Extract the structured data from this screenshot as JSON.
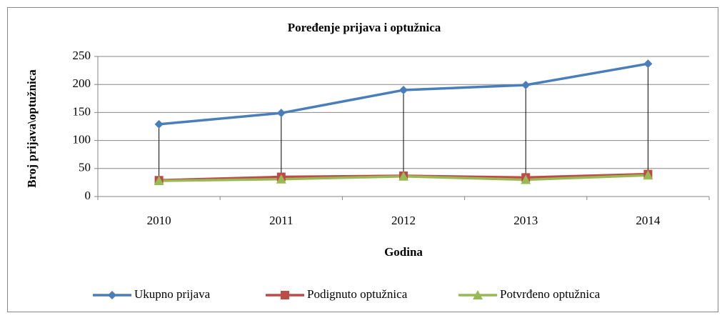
{
  "chart_data": {
    "type": "line",
    "title": "Poređenje prijava i optužnica",
    "x_label": "Godina",
    "y_label": "Broj prijava\\optužnica",
    "categories": [
      "2010",
      "2011",
      "2012",
      "2013",
      "2014"
    ],
    "series": [
      {
        "name": "Ukupno prijava",
        "color": "#4a7ebb",
        "marker": "diamond",
        "values": [
          129,
          149,
          190,
          199,
          237
        ]
      },
      {
        "name": "Podignuto optužnica",
        "color": "#be4b48",
        "marker": "square",
        "values": [
          29,
          35,
          37,
          34,
          40
        ]
      },
      {
        "name": "Potvrđeno optužnica",
        "color": "#98b954",
        "marker": "triangle",
        "values": [
          28,
          31,
          36,
          30,
          38
        ]
      }
    ],
    "ylim": [
      0,
      250
    ],
    "yticks": [
      0,
      50,
      100,
      150,
      200,
      250
    ],
    "grid": true,
    "legend": "bottom"
  }
}
